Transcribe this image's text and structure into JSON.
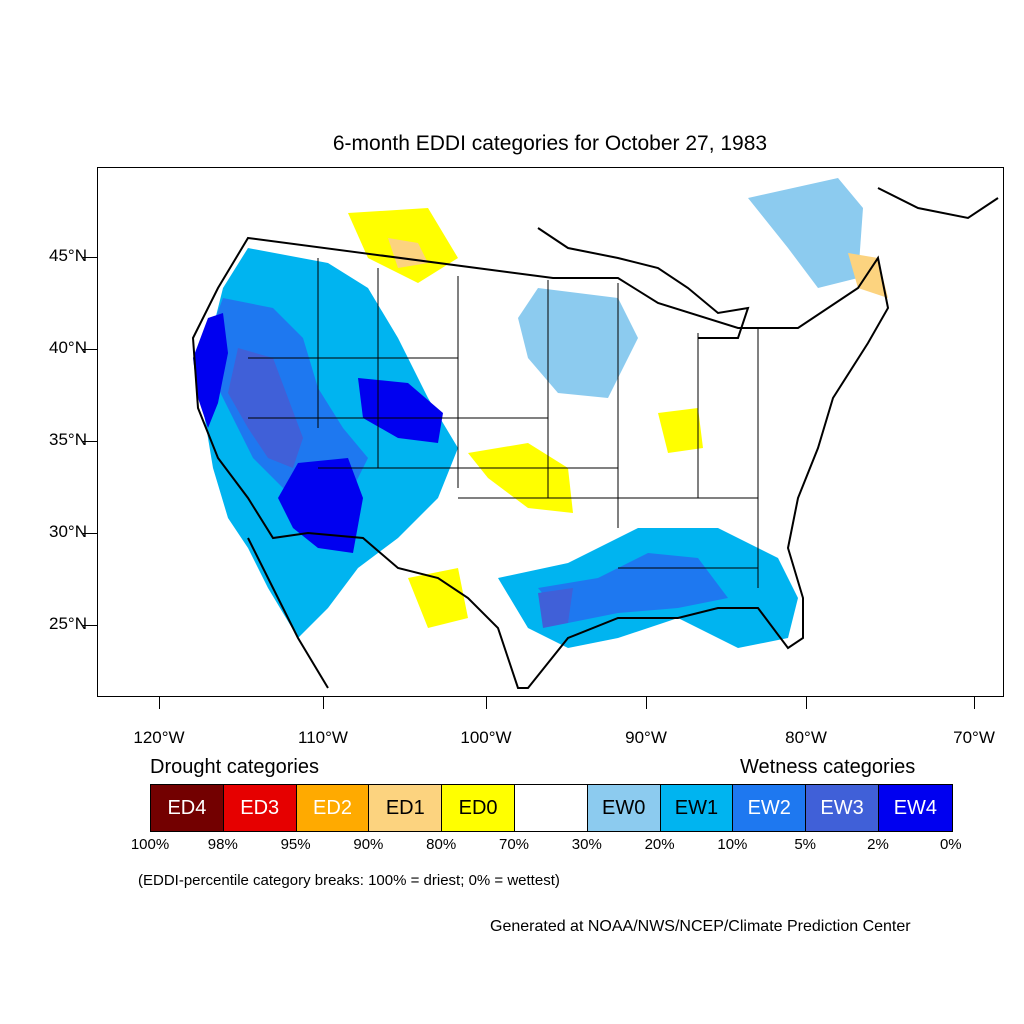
{
  "title": "6-month EDDI categories for October 27, 1983",
  "axes": {
    "lat_labels": [
      "45°N",
      "40°N",
      "35°N",
      "30°N",
      "25°N"
    ],
    "lon_labels": [
      "120°W",
      "110°W",
      "100°W",
      "90°W",
      "80°W",
      "70°W"
    ]
  },
  "legend": {
    "drought_heading": "Drought categories",
    "wetness_heading": "Wetness categories",
    "categories": [
      {
        "label": "ED4",
        "color": "#730000",
        "text_color": "#ffffff"
      },
      {
        "label": "ED3",
        "color": "#e60000",
        "text_color": "#ffffff"
      },
      {
        "label": "ED2",
        "color": "#ffaa00",
        "text_color": "#ffffff"
      },
      {
        "label": "ED1",
        "color": "#fcd37f",
        "text_color": "#000000"
      },
      {
        "label": "ED0",
        "color": "#ffff00",
        "text_color": "#000000"
      },
      {
        "label": "",
        "color": "#ffffff",
        "text_color": "#000000"
      },
      {
        "label": "EW0",
        "color": "#8ccbef",
        "text_color": "#000000"
      },
      {
        "label": "EW1",
        "color": "#00b4f0",
        "text_color": "#000000"
      },
      {
        "label": "EW2",
        "color": "#1e78f0",
        "text_color": "#ffffff"
      },
      {
        "label": "EW3",
        "color": "#4060d8",
        "text_color": "#ffffff"
      },
      {
        "label": "EW4",
        "color": "#0000f0",
        "text_color": "#ffffff"
      }
    ],
    "breaks": [
      "100%",
      "98%",
      "95%",
      "90%",
      "80%",
      "70%",
      "30%",
      "20%",
      "10%",
      "5%",
      "2%",
      "0%"
    ]
  },
  "note": "(EDDI-percentile category breaks: 100% = driest; 0% = wettest)",
  "credit": "Generated at NOAA/NWS/NCEP/Climate Prediction Center"
}
